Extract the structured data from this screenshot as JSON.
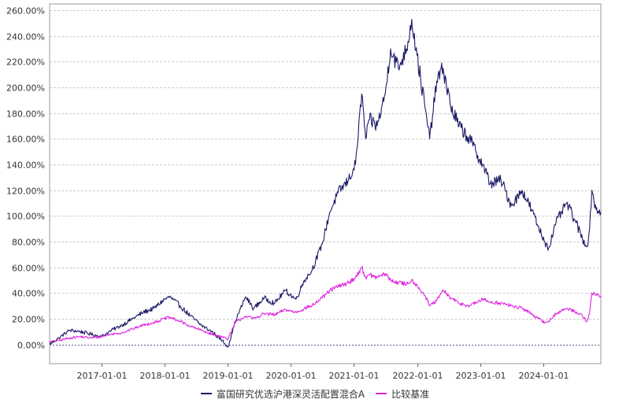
{
  "chart_data": {
    "type": "line",
    "title": "",
    "xlabel": "",
    "ylabel": "",
    "grid": true,
    "legend_position": "bottom",
    "ylim": [
      -15,
      265
    ],
    "xlim": [
      "2016-03-08",
      "2024-11-29"
    ],
    "yticks": [
      0,
      20,
      40,
      60,
      80,
      100,
      120,
      140,
      160,
      180,
      200,
      220,
      240,
      260
    ],
    "ytick_labels": [
      "0.00%",
      "20.00%",
      "40.00%",
      "60.00%",
      "80.00%",
      "100.00%",
      "120.00%",
      "140.00%",
      "160.00%",
      "180.00%",
      "200.00%",
      "220.00%",
      "240.00%",
      "260.00%"
    ],
    "xticks": [
      "2017-01-01",
      "2018-01-01",
      "2019-01-01",
      "2020-01-01",
      "2021-01-01",
      "2022-01-01",
      "2023-01-01",
      "2024-01-01"
    ],
    "series": [
      {
        "name": "富国研究优选沪港深灵活配置混合A",
        "color": "#1b1a66",
        "x": [
          "2016-03-08",
          "2016-05-01",
          "2016-07-01",
          "2016-09-01",
          "2016-11-01",
          "2017-01-01",
          "2017-03-01",
          "2017-05-01",
          "2017-07-01",
          "2017-09-01",
          "2017-11-01",
          "2018-01-01",
          "2018-02-01",
          "2018-04-01",
          "2018-06-01",
          "2018-08-01",
          "2018-10-01",
          "2018-12-01",
          "2019-01-04",
          "2019-02-15",
          "2019-04-15",
          "2019-06-01",
          "2019-08-01",
          "2019-10-01",
          "2019-12-01",
          "2020-02-01",
          "2020-03-20",
          "2020-05-01",
          "2020-07-01",
          "2020-08-15",
          "2020-10-01",
          "2020-12-01",
          "2021-01-10",
          "2021-02-15",
          "2021-03-10",
          "2021-04-01",
          "2021-05-15",
          "2021-07-01",
          "2021-08-01",
          "2021-09-15",
          "2021-11-01",
          "2021-12-01",
          "2022-01-01",
          "2022-02-15",
          "2022-03-15",
          "2022-04-25",
          "2022-06-01",
          "2022-07-15",
          "2022-09-01",
          "2022-10-31",
          "2023-01-15",
          "2023-03-01",
          "2023-05-01",
          "2023-07-01",
          "2023-09-01",
          "2023-10-25",
          "2023-12-01",
          "2024-01-10",
          "2024-02-01",
          "2024-03-15",
          "2024-05-15",
          "2024-07-01",
          "2024-08-15",
          "2024-09-10",
          "2024-09-25",
          "2024-10-08",
          "2024-11-01",
          "2024-11-29"
        ],
        "y": [
          0,
          5,
          11,
          10,
          8,
          6,
          11,
          15,
          20,
          25,
          28,
          35,
          37,
          30,
          22,
          15,
          10,
          3,
          -2,
          18,
          37,
          28,
          36,
          32,
          42,
          35,
          50,
          57,
          78,
          103,
          118,
          128,
          140,
          195,
          160,
          175,
          170,
          195,
          230,
          215,
          230,
          253,
          225,
          185,
          160,
          205,
          215,
          185,
          170,
          160,
          140,
          125,
          128,
          108,
          120,
          105,
          92,
          80,
          75,
          95,
          110,
          97,
          82,
          76,
          90,
          120,
          105,
          103
        ]
      },
      {
        "name": "比较基准",
        "color": "#e022e0",
        "x": [
          "2016-03-08",
          "2016-05-01",
          "2016-07-01",
          "2016-09-01",
          "2016-11-01",
          "2017-01-01",
          "2017-03-01",
          "2017-05-01",
          "2017-07-01",
          "2017-09-01",
          "2017-11-01",
          "2018-01-01",
          "2018-02-01",
          "2018-04-01",
          "2018-06-01",
          "2018-08-01",
          "2018-10-01",
          "2018-12-01",
          "2019-01-04",
          "2019-02-15",
          "2019-04-15",
          "2019-06-01",
          "2019-08-01",
          "2019-10-01",
          "2019-12-01",
          "2020-02-01",
          "2020-03-20",
          "2020-05-01",
          "2020-07-01",
          "2020-08-15",
          "2020-10-01",
          "2020-12-01",
          "2021-01-10",
          "2021-02-15",
          "2021-03-10",
          "2021-04-01",
          "2021-05-15",
          "2021-07-01",
          "2021-08-01",
          "2021-09-15",
          "2021-11-01",
          "2021-12-01",
          "2022-01-01",
          "2022-02-15",
          "2022-03-15",
          "2022-04-25",
          "2022-06-01",
          "2022-07-15",
          "2022-09-01",
          "2022-10-31",
          "2023-01-15",
          "2023-03-01",
          "2023-05-01",
          "2023-07-01",
          "2023-09-01",
          "2023-10-25",
          "2023-12-01",
          "2024-01-10",
          "2024-02-01",
          "2024-03-15",
          "2024-05-15",
          "2024-07-01",
          "2024-08-15",
          "2024-09-10",
          "2024-09-25",
          "2024-10-08",
          "2024-11-01",
          "2024-11-29"
        ],
        "y": [
          2,
          3,
          5,
          6,
          5,
          6,
          8,
          9,
          12,
          15,
          17,
          20,
          21,
          18,
          14,
          11,
          8,
          6,
          4,
          17,
          22,
          20,
          24,
          23,
          27,
          25,
          28,
          30,
          36,
          42,
          45,
          48,
          52,
          60,
          52,
          54,
          52,
          55,
          50,
          48,
          47,
          50,
          46,
          38,
          30,
          34,
          42,
          36,
          32,
          30,
          35,
          33,
          32,
          30,
          28,
          24,
          20,
          17,
          18,
          24,
          28,
          26,
          22,
          18,
          25,
          40,
          38,
          38
        ]
      }
    ]
  }
}
